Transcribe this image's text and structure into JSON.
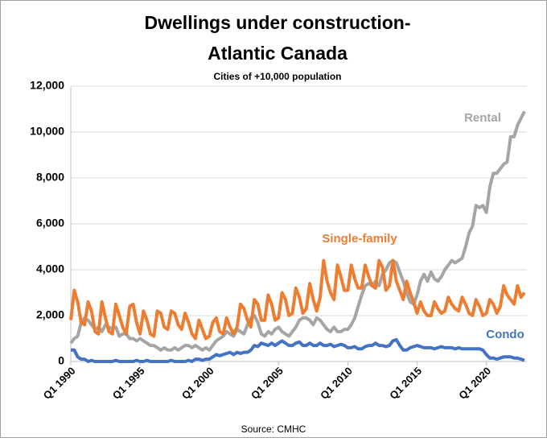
{
  "chart_data": {
    "type": "line",
    "title": [
      "Dwellings under construction-",
      "Atlantic Canada"
    ],
    "subtitle": "Cities of +10,000 population",
    "source": "Source: CMHC",
    "categories": [
      "Q1 1990",
      null,
      null,
      null,
      null,
      null,
      null,
      null,
      null,
      null,
      null,
      null,
      null,
      null,
      null,
      null,
      null,
      null,
      null,
      null,
      "Q1 1995",
      null,
      null,
      null,
      null,
      null,
      null,
      null,
      null,
      null,
      null,
      null,
      null,
      null,
      null,
      null,
      null,
      null,
      null,
      null,
      "Q1 2000",
      null,
      null,
      null,
      null,
      null,
      null,
      null,
      null,
      null,
      null,
      null,
      null,
      null,
      null,
      null,
      null,
      null,
      null,
      null,
      "Q1 2005",
      null,
      null,
      null,
      null,
      null,
      null,
      null,
      null,
      null,
      null,
      null,
      null,
      null,
      null,
      null,
      null,
      null,
      null,
      null,
      "Q1 2010",
      null,
      null,
      null,
      null,
      null,
      null,
      null,
      null,
      null,
      null,
      null,
      null,
      null,
      null,
      null,
      null,
      null,
      null,
      null,
      "Q1 2015",
      null,
      null,
      null,
      null,
      null,
      null,
      null,
      null,
      null,
      null,
      null,
      null,
      null,
      null,
      null,
      null,
      null,
      null,
      null,
      "Q1 2020",
      null,
      null,
      null,
      null,
      null,
      null,
      null,
      null,
      null,
      null,
      null
    ],
    "series": [
      {
        "name": "Rental",
        "color": "#a5a5a5",
        "values": [
          800,
          1000,
          1100,
          1700,
          1900,
          1800,
          1600,
          1400,
          1500,
          1300,
          1600,
          1500,
          1400,
          1500,
          1100,
          1200,
          1200,
          1000,
          1000,
          900,
          1000,
          900,
          800,
          700,
          700,
          600,
          500,
          600,
          500,
          500,
          600,
          500,
          600,
          700,
          700,
          600,
          700,
          600,
          500,
          600,
          500,
          700,
          900,
          1000,
          1100,
          1300,
          1200,
          1100,
          1400,
          1300,
          1200,
          1600,
          1900,
          2000,
          1700,
          1200,
          1100,
          1300,
          1200,
          1400,
          1500,
          1300,
          1200,
          1100,
          1300,
          1500,
          1800,
          1900,
          1900,
          1800,
          1600,
          1900,
          1800,
          1600,
          1400,
          1300,
          1500,
          1300,
          1300,
          1400,
          1400,
          1600,
          1900,
          2400,
          2900,
          3300,
          3400,
          3300,
          3500,
          3300,
          3800,
          4000,
          4300,
          4400,
          4300,
          3900,
          3500,
          3000,
          2600,
          2500,
          2900,
          3500,
          3800,
          3500,
          3900,
          3600,
          3500,
          3700,
          4000,
          4200,
          4400,
          4300,
          4400,
          4500,
          5000,
          5600,
          5900,
          6800,
          6700,
          6800,
          6500,
          7600,
          8200,
          8200,
          8400,
          8600,
          8700,
          9800,
          9800,
          10300,
          10600,
          10900
        ]
      },
      {
        "name": "Single-family",
        "color": "#ed7d31",
        "values": [
          1800,
          3100,
          2600,
          1700,
          1600,
          2600,
          2200,
          1300,
          1200,
          2600,
          1900,
          1300,
          1200,
          2500,
          2000,
          1500,
          1200,
          2400,
          2500,
          1700,
          1200,
          2200,
          1800,
          1200,
          1100,
          2200,
          2100,
          1500,
          1400,
          2200,
          2100,
          1600,
          1400,
          2100,
          1700,
          1200,
          1000,
          1800,
          1400,
          1000,
          1100,
          1700,
          1900,
          1300,
          1200,
          1900,
          1500,
          1200,
          1500,
          2500,
          2300,
          1800,
          1500,
          2700,
          2500,
          1800,
          1800,
          2900,
          2500,
          1800,
          1900,
          3000,
          2700,
          2000,
          2100,
          3200,
          2800,
          2100,
          2300,
          3400,
          2700,
          2200,
          2800,
          4400,
          3500,
          3000,
          2700,
          4200,
          3700,
          3100,
          3100,
          4200,
          3600,
          3200,
          3200,
          4200,
          3700,
          3300,
          3200,
          4400,
          4100,
          3100,
          3300,
          4400,
          3500,
          3100,
          2700,
          3500,
          3000,
          2600,
          2100,
          2600,
          2200,
          2000,
          2000,
          2600,
          2300,
          2100,
          2200,
          2800,
          2500,
          2300,
          2200,
          2800,
          2500,
          2100,
          2000,
          2700,
          2400,
          2000,
          2100,
          2700,
          2500,
          2100,
          2400,
          3300,
          2900,
          2700,
          2500,
          3300,
          2800,
          3000
        ]
      },
      {
        "name": "Condo",
        "color": "#4472c4",
        "values": [
          500,
          500,
          200,
          100,
          100,
          0,
          50,
          0,
          0,
          0,
          0,
          0,
          0,
          50,
          0,
          0,
          0,
          0,
          0,
          50,
          0,
          0,
          50,
          0,
          0,
          0,
          0,
          0,
          0,
          50,
          0,
          0,
          0,
          0,
          50,
          0,
          100,
          100,
          50,
          100,
          100,
          200,
          300,
          250,
          300,
          350,
          400,
          300,
          400,
          350,
          400,
          400,
          500,
          700,
          650,
          800,
          750,
          700,
          800,
          700,
          800,
          900,
          800,
          700,
          700,
          800,
          850,
          700,
          700,
          800,
          700,
          700,
          800,
          700,
          700,
          750,
          650,
          700,
          750,
          700,
          600,
          600,
          650,
          550,
          550,
          650,
          700,
          700,
          800,
          700,
          700,
          650,
          700,
          900,
          950,
          700,
          500,
          500,
          600,
          650,
          700,
          650,
          600,
          600,
          600,
          550,
          600,
          650,
          600,
          600,
          600,
          550,
          600,
          550,
          550,
          550,
          550,
          550,
          550,
          500,
          300,
          150,
          150,
          100,
          150,
          200,
          200,
          200,
          150,
          150,
          100,
          50
        ]
      }
    ],
    "ylim": [
      0,
      12000
    ],
    "yticks": [
      0,
      {
        "value": 2000,
        "label": "2,000"
      },
      {
        "value": 4000,
        "label": "4,000"
      },
      {
        "value": 6000,
        "label": "6,000"
      },
      {
        "value": 8000,
        "label": "8,000"
      },
      {
        "value": 10000,
        "label": "10,000"
      },
      {
        "value": 12000,
        "label": "12,000"
      }
    ],
    "grid": true
  }
}
